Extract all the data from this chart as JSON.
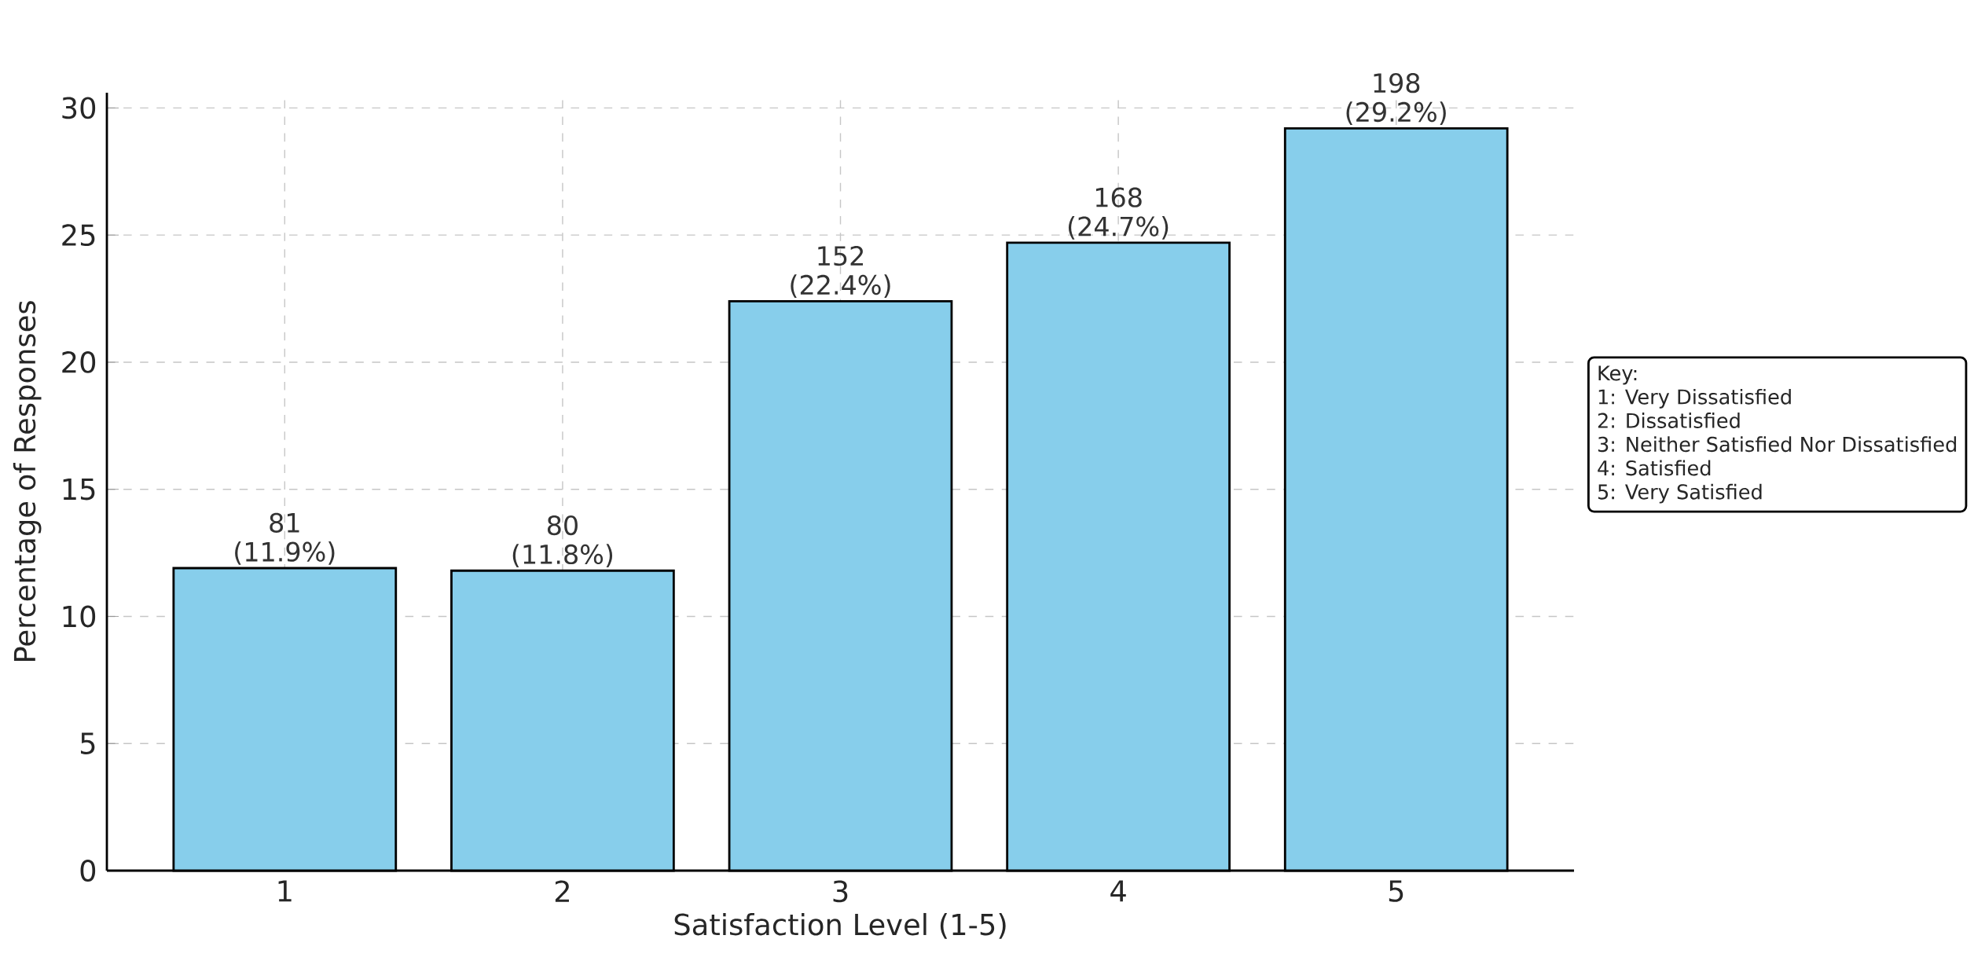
{
  "chart_data": {
    "type": "bar",
    "xlabel": "Satisfaction Level (1-5)",
    "ylabel": "Percentage of Responses",
    "categories": [
      "1",
      "2",
      "3",
      "4",
      "5"
    ],
    "values": [
      11.9,
      11.8,
      22.4,
      24.7,
      29.2
    ],
    "value_labels": [
      "81 (11.9%)",
      "80 (11.8%)",
      "152 (22.4%)",
      "168 (24.7%)",
      "198 (29.2%)"
    ],
    "color": "#87ceeb",
    "ylim": [
      0,
      30.6
    ],
    "yticks": [
      0,
      5,
      10,
      15,
      20,
      25,
      30
    ],
    "grid": true,
    "annotations": [
      "Key:",
      "1: Very Dissatisfied",
      "2: Dissatisfied",
      "3: Neither Satisfied Nor Dissatisfied",
      "4: Satisfied",
      "5: Very Satisfied"
    ]
  }
}
